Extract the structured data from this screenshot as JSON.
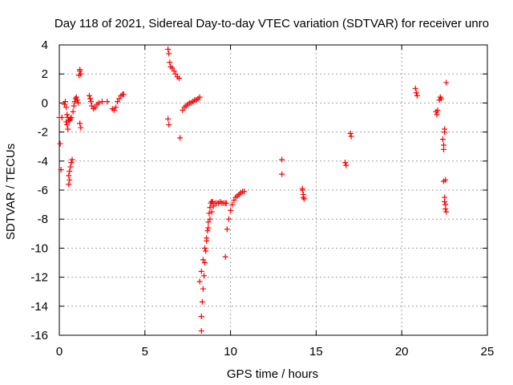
{
  "chart_data": {
    "type": "scatter",
    "title": "Day 118 of 2021, Sidereal Day-to-day VTEC variation (SDTVAR) for receiver unro",
    "xlabel": "GPS time / hours",
    "ylabel": "SDTVAR / TECUs",
    "xlim": [
      0,
      25
    ],
    "ylim": [
      -16,
      4
    ],
    "xticks": [
      0,
      5,
      10,
      15,
      20,
      25
    ],
    "yticks": [
      4,
      2,
      0,
      -2,
      -4,
      -6,
      -8,
      -10,
      -12,
      -14,
      -16
    ],
    "xtick_labels": [
      "0",
      "5",
      "10",
      "15",
      "20",
      "25"
    ],
    "ytick_labels": [
      "4",
      "2",
      "0",
      "-2",
      "-4",
      "-6",
      "-8",
      "-10",
      "-12",
      "-14",
      "-16"
    ],
    "grid": true,
    "marker": "+",
    "color": "#ff0000",
    "series": [
      {
        "name": "SDTVAR",
        "x": [
          0.0,
          0.05,
          0.1,
          0.15,
          0.3,
          0.35,
          0.4,
          0.45,
          0.5,
          0.55,
          0.6,
          0.65,
          0.7,
          0.8,
          0.85,
          0.9,
          0.95,
          1.0,
          1.05,
          1.1,
          0.4,
          0.45,
          0.5,
          0.55,
          0.6,
          0.55,
          0.6,
          0.65,
          0.7,
          0.75,
          1.2,
          1.25,
          1.2,
          1.25,
          1.15,
          1.2,
          1.75,
          1.8,
          1.85,
          1.9,
          2.0,
          2.1,
          2.2,
          2.3,
          2.5,
          2.8,
          3.1,
          3.2,
          3.3,
          3.4,
          3.5,
          3.6,
          3.7,
          3.75,
          6.35,
          6.4,
          6.45,
          6.5,
          6.6,
          6.7,
          6.8,
          6.9,
          7.0,
          6.35,
          6.4,
          7.05,
          7.2,
          7.3,
          7.4,
          7.5,
          7.6,
          7.7,
          7.8,
          7.9,
          8.0,
          8.1,
          8.2,
          8.3,
          8.3,
          8.35,
          8.4,
          8.45,
          8.5,
          8.55,
          8.6,
          8.65,
          8.7,
          8.75,
          8.8,
          8.85,
          8.9,
          8.95,
          8.2,
          8.3,
          8.4,
          8.5,
          8.6,
          8.7,
          8.8,
          8.9,
          9.0,
          9.1,
          9.2,
          9.3,
          9.4,
          9.5,
          9.6,
          9.7,
          9.75,
          9.7,
          9.8,
          9.9,
          10.0,
          10.1,
          10.2,
          10.3,
          10.4,
          10.5,
          10.6,
          10.7,
          10.8,
          13.0,
          13.0,
          14.2,
          14.25,
          14.3,
          14.2,
          14.25,
          16.7,
          16.75,
          17.0,
          17.05,
          20.8,
          20.85,
          20.9,
          22.0,
          22.05,
          22.1,
          22.2,
          22.25,
          22.3,
          22.4,
          22.45,
          22.45,
          22.5,
          22.5,
          22.45,
          22.5,
          22.55,
          22.55,
          22.6,
          22.5,
          22.55,
          22.6
        ],
        "y": [
          -1.0,
          -2.8,
          -4.6,
          -1.0,
          -0.1,
          0.1,
          -0.3,
          -0.8,
          -1.0,
          -1.2,
          -1.2,
          -1.1,
          -1.0,
          -0.6,
          -0.2,
          0.1,
          0.3,
          0.4,
          0.2,
          0.0,
          -1.3,
          -1.5,
          -1.8,
          -5.6,
          -5.3,
          -5.0,
          -4.7,
          -4.4,
          -4.1,
          -3.9,
          2.2,
          2.0,
          -1.4,
          -1.7,
          1.9,
          2.3,
          0.5,
          0.3,
          0.1,
          -0.2,
          -0.4,
          -0.3,
          -0.1,
          0.0,
          0.1,
          0.1,
          -0.4,
          -0.5,
          -0.3,
          0.1,
          0.3,
          0.5,
          0.6,
          0.6,
          3.7,
          3.4,
          2.8,
          2.5,
          2.4,
          2.2,
          2.0,
          1.8,
          1.7,
          -1.1,
          -1.5,
          -2.4,
          -0.5,
          -0.3,
          -0.2,
          -0.1,
          0.0,
          0.0,
          0.1,
          0.2,
          0.2,
          0.3,
          0.4,
          -15.7,
          -14.7,
          -13.7,
          -12.8,
          -11.9,
          -11.0,
          -10.2,
          -9.5,
          -8.8,
          -8.2,
          -7.6,
          -7.2,
          -6.9,
          -6.8,
          -6.8,
          -12.3,
          -11.6,
          -10.8,
          -10.0,
          -9.3,
          -8.6,
          -8.0,
          -7.5,
          -7.1,
          -6.9,
          -6.9,
          -6.9,
          -6.8,
          -6.9,
          -6.9,
          -6.9,
          -6.9,
          -10.6,
          -8.7,
          -8.0,
          -7.4,
          -7.0,
          -6.7,
          -6.5,
          -6.4,
          -6.3,
          -6.2,
          -6.1,
          -6.1,
          -3.9,
          -4.9,
          -5.9,
          -6.3,
          -6.6,
          -6.0,
          -6.5,
          -4.1,
          -4.3,
          -2.1,
          -2.3,
          1.0,
          0.7,
          0.5,
          -0.6,
          -0.8,
          -0.5,
          0.2,
          0.4,
          0.3,
          -2.5,
          -2.9,
          -3.2,
          -2.0,
          -1.8,
          -5.4,
          -6.5,
          -7.3,
          -7.0,
          -7.5,
          -6.8,
          -5.3,
          1.4
        ]
      }
    ]
  }
}
